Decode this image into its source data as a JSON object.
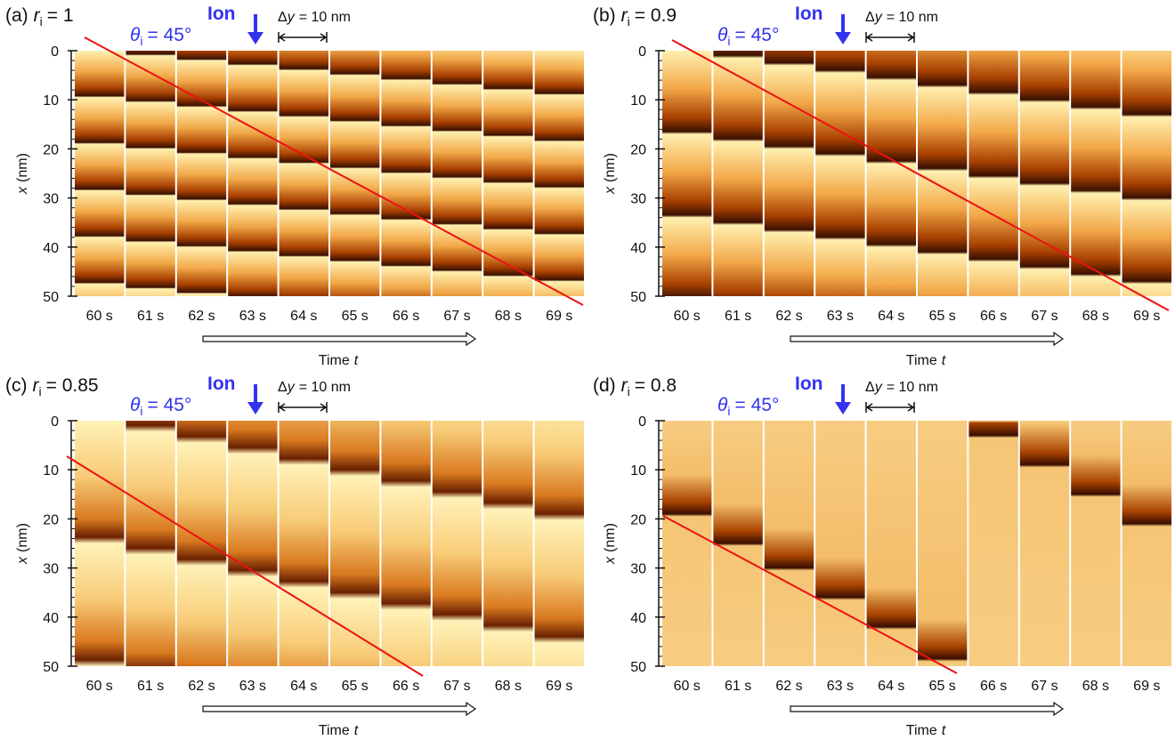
{
  "panels": [
    {
      "label": "(a)",
      "ratio_symbol": "r",
      "ratio_sub": "i",
      "ratio_value": "= 1",
      "angle_symbol": "θ",
      "angle_sub": "i",
      "angle_value": "= 45°",
      "ion": "Ion",
      "step_symbol": "Δ",
      "step_var": "y",
      "step_value": "= 10 nm",
      "y_axis_var": "x",
      "y_axis_unit": "(nm)",
      "y_ticks": [
        0,
        10,
        20,
        30,
        40,
        50
      ],
      "frames": [
        "60 s",
        "61 s",
        "62 s",
        "63 s",
        "64 s",
        "65 s",
        "66 s",
        "67 s",
        "68 s",
        "69 s"
      ],
      "time_label": "Time",
      "time_var": "t"
    },
    {
      "label": "(b)",
      "ratio_symbol": "r",
      "ratio_sub": "i",
      "ratio_value": "= 0.9",
      "angle_symbol": "θ",
      "angle_sub": "i",
      "angle_value": "= 45°",
      "ion": "Ion",
      "step_symbol": "Δ",
      "step_var": "y",
      "step_value": "= 10 nm",
      "y_axis_var": "x",
      "y_axis_unit": "(nm)",
      "y_ticks": [
        0,
        10,
        20,
        30,
        40,
        50
      ],
      "frames": [
        "60 s",
        "61 s",
        "62 s",
        "63 s",
        "64 s",
        "65 s",
        "66 s",
        "67 s",
        "68 s",
        "69 s"
      ],
      "time_label": "Time",
      "time_var": "t"
    },
    {
      "label": "(c)",
      "ratio_symbol": "r",
      "ratio_sub": "i",
      "ratio_value": "= 0.85",
      "angle_symbol": "θ",
      "angle_sub": "i",
      "angle_value": "= 45°",
      "ion": "Ion",
      "step_symbol": "Δ",
      "step_var": "y",
      "step_value": "= 10 nm",
      "y_axis_var": "x",
      "y_axis_unit": "(nm)",
      "y_ticks": [
        0,
        10,
        20,
        30,
        40,
        50
      ],
      "frames": [
        "60 s",
        "61 s",
        "62 s",
        "63 s",
        "64 s",
        "65 s",
        "66 s",
        "67 s",
        "68 s",
        "69 s"
      ],
      "time_label": "Time",
      "time_var": "t"
    },
    {
      "label": "(d)",
      "ratio_symbol": "r",
      "ratio_sub": "i",
      "ratio_value": "= 0.8",
      "angle_symbol": "θ",
      "angle_sub": "i",
      "angle_value": "= 45°",
      "ion": "Ion",
      "step_symbol": "Δ",
      "step_var": "y",
      "step_value": "= 10 nm",
      "y_axis_var": "x",
      "y_axis_unit": "(nm)",
      "y_ticks": [
        0,
        10,
        20,
        30,
        40,
        50
      ],
      "frames": [
        "60 s",
        "61 s",
        "62 s",
        "63 s",
        "64 s",
        "65 s",
        "66 s",
        "67 s",
        "68 s",
        "69 s"
      ],
      "time_label": "Time",
      "time_var": "t"
    }
  ]
}
